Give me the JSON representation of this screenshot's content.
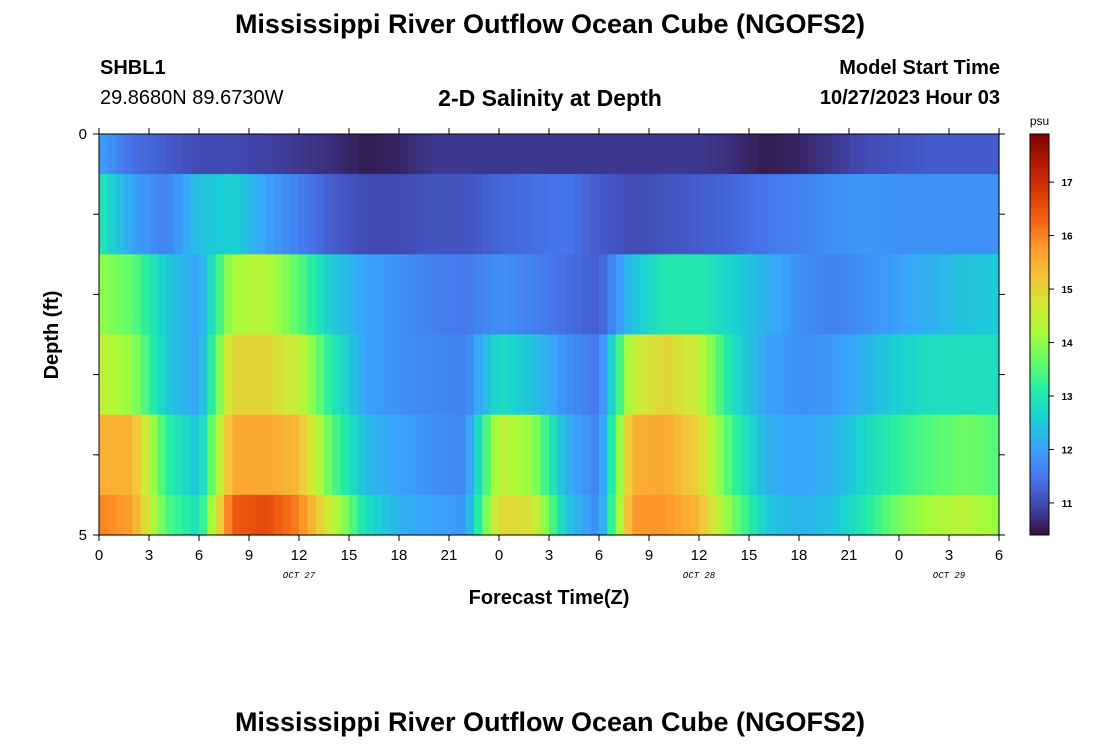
{
  "header": {
    "title": "Mississippi River Outflow Ocean Cube (NGOFS2)",
    "station_id": "SHBL1",
    "coordinates": "29.8680N  89.6730W",
    "subtitle": "2-D Salinity at Depth",
    "model_start_label": "Model Start Time",
    "model_start_value": "10/27/2023 Hour 03"
  },
  "footer": {
    "title": "Mississippi River Outflow Ocean Cube (NGOFS2)"
  },
  "colors": {
    "colormap": [
      "#30123b",
      "#4145ab",
      "#4675ed",
      "#39a2fc",
      "#1bcfd4",
      "#24eca6",
      "#61fc6c",
      "#a4fc3b",
      "#d1e834",
      "#f3c63a",
      "#fe9b2d",
      "#f36315",
      "#d93806",
      "#b11901",
      "#7a0402"
    ]
  },
  "chart_data": {
    "type": "heatmap",
    "xlabel": "Forecast Time(Z)",
    "ylabel": "Depth (ft)",
    "x_ticks": [
      "0",
      "3",
      "6",
      "9",
      "12",
      "15",
      "18",
      "21",
      "0",
      "3",
      "6",
      "9",
      "12",
      "15",
      "18",
      "21",
      "0",
      "3",
      "6"
    ],
    "x_range_hours": [
      0,
      54
    ],
    "date_labels": [
      {
        "label": "OCT 27",
        "at_hour": 12
      },
      {
        "label": "OCT 28",
        "at_hour": 36
      },
      {
        "label": "OCT 29",
        "at_hour": 51
      }
    ],
    "y_ticks": [
      "0",
      "5"
    ],
    "ylim": [
      0,
      5
    ],
    "colorbar": {
      "unit": "psu",
      "range": [
        10.4,
        17.9
      ],
      "ticks": [
        "11",
        "12",
        "13",
        "14",
        "15",
        "16",
        "17"
      ]
    },
    "hours": [
      0,
      2,
      4,
      6,
      8,
      10,
      12,
      14,
      16,
      18,
      20,
      22,
      24,
      26,
      28,
      30,
      32,
      34,
      36,
      38,
      40,
      42,
      44,
      46,
      48,
      50,
      52,
      54
    ],
    "rows": [
      {
        "depth": "0.0-0.5",
        "values": [
          12.0,
          11.4,
          11.2,
          11.0,
          11.0,
          10.9,
          10.8,
          10.7,
          10.5,
          10.6,
          10.8,
          10.8,
          10.8,
          10.8,
          10.8,
          10.8,
          10.8,
          10.8,
          10.8,
          10.7,
          10.5,
          10.6,
          10.8,
          11.0,
          11.1,
          11.2,
          11.2,
          11.2
        ]
      },
      {
        "depth": "0.5-1.5",
        "values": [
          13.0,
          12.0,
          11.6,
          12.4,
          12.6,
          12.0,
          11.6,
          11.2,
          11.0,
          11.0,
          11.1,
          11.1,
          11.3,
          11.4,
          11.5,
          11.2,
          11.0,
          11.1,
          11.2,
          11.3,
          11.5,
          11.6,
          11.8,
          11.9,
          11.8,
          11.8,
          11.8,
          11.8
        ]
      },
      {
        "depth": "1.5-2.5",
        "values": [
          14.0,
          13.6,
          12.5,
          12.0,
          14.2,
          14.4,
          13.5,
          12.5,
          12.0,
          11.8,
          11.6,
          11.5,
          11.8,
          11.6,
          11.4,
          11.2,
          12.4,
          13.0,
          13.0,
          12.6,
          12.2,
          11.8,
          11.6,
          11.8,
          12.0,
          12.2,
          12.4,
          12.5
        ]
      },
      {
        "depth": "2.5-3.5",
        "values": [
          14.5,
          14.0,
          12.5,
          12.0,
          15.0,
          15.0,
          14.5,
          13.0,
          12.0,
          11.8,
          11.7,
          11.6,
          12.8,
          12.4,
          11.8,
          11.5,
          14.5,
          15.0,
          14.5,
          12.8,
          12.0,
          11.8,
          11.9,
          12.2,
          12.6,
          12.8,
          12.8,
          12.8
        ]
      },
      {
        "depth": "3.5-4.5",
        "values": [
          15.5,
          15.5,
          13.2,
          12.4,
          15.6,
          15.6,
          15.4,
          13.5,
          12.3,
          12.0,
          11.8,
          11.7,
          14.5,
          14.0,
          12.2,
          11.6,
          15.5,
          15.6,
          15.0,
          13.3,
          12.2,
          12.0,
          12.2,
          12.7,
          13.2,
          13.5,
          13.7,
          13.5
        ]
      },
      {
        "depth": "4.5-5.0",
        "values": [
          16.0,
          15.7,
          13.5,
          12.8,
          16.4,
          16.6,
          16.0,
          14.5,
          12.8,
          12.2,
          12.0,
          11.9,
          15.0,
          14.8,
          12.5,
          11.7,
          15.8,
          15.8,
          15.4,
          13.8,
          12.5,
          12.2,
          12.4,
          13.0,
          13.8,
          14.2,
          14.4,
          14.0
        ]
      }
    ]
  }
}
